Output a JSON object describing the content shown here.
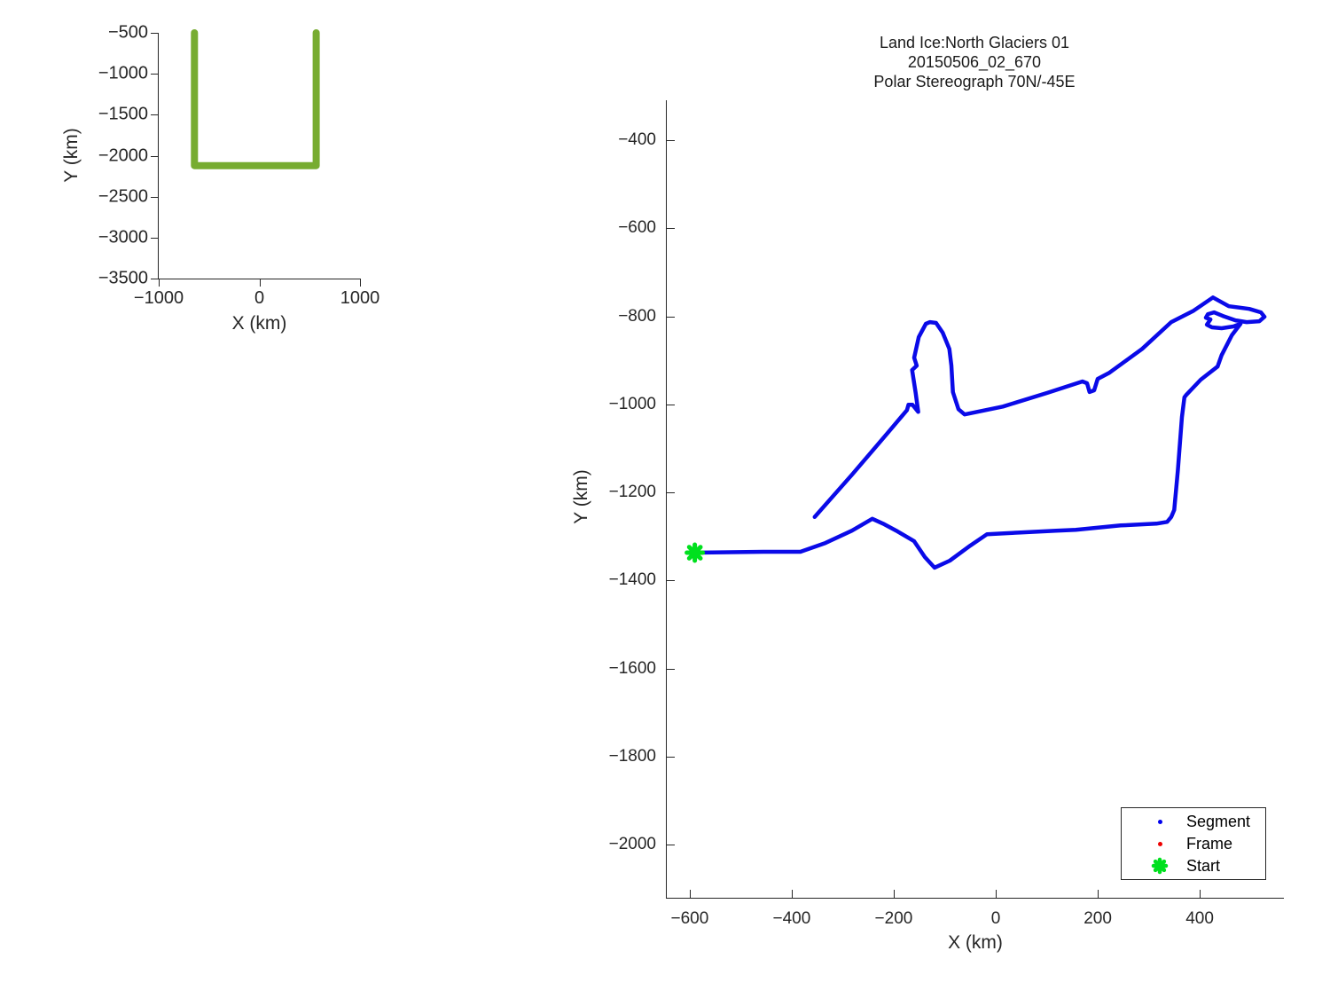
{
  "figure": {
    "background": "#ffffff"
  },
  "chart_data": [
    {
      "type": "line",
      "name": "coverage-overview",
      "title": "",
      "xlabel": "X (km)",
      "ylabel": "Y (km)",
      "xlim": [
        -1000,
        1000
      ],
      "ylim": [
        -3500,
        -500
      ],
      "x_ticks": [
        -1000,
        0,
        1000
      ],
      "y_ticks": [
        -500,
        -1000,
        -1500,
        -2000,
        -2500,
        -3000,
        -3500
      ],
      "grid": false,
      "tick_dir": "out",
      "series": [
        {
          "name": "coverage-extent-box",
          "type": "line",
          "color": "#77AC30",
          "line_width": 8,
          "points": [
            [
              -645,
              -500
            ],
            [
              -645,
              -2121
            ],
            [
              565,
              -2121
            ],
            [
              565,
              -500
            ]
          ]
        }
      ]
    },
    {
      "type": "line",
      "name": "flight-track",
      "title_lines": [
        "Land Ice:North Glaciers 01",
        "20150506_02_670",
        "Polar Stereograph 70N/-45E"
      ],
      "xlabel": "X (km)",
      "ylabel": "Y (km)",
      "xlim": [
        -645,
        565
      ],
      "ylim": [
        -2121,
        -309
      ],
      "x_ticks": [
        -600,
        -400,
        -200,
        0,
        200,
        400
      ],
      "y_ticks": [
        -400,
        -600,
        -800,
        -1000,
        -1200,
        -1400,
        -1600,
        -1800,
        -2000
      ],
      "grid": false,
      "tick_dir": "in",
      "legend_position": "bottom-right",
      "series": [
        {
          "name": "Segment",
          "type": "line",
          "color": "#0A0AE8",
          "line_width": 4.5,
          "points": [
            [
              -590,
              -1337
            ],
            [
              -456,
              -1335
            ],
            [
              -383,
              -1335
            ],
            [
              -334,
              -1315
            ],
            [
              -282,
              -1287
            ],
            [
              -242,
              -1260
            ],
            [
              -221,
              -1271
            ],
            [
              -195,
              -1287
            ],
            [
              -160,
              -1311
            ],
            [
              -139,
              -1347
            ],
            [
              -120,
              -1371
            ],
            [
              -90,
              -1355
            ],
            [
              -50,
              -1321
            ],
            [
              -17,
              -1295
            ],
            [
              49,
              -1291
            ],
            [
              118,
              -1287
            ],
            [
              157,
              -1285
            ],
            [
              245,
              -1275
            ],
            [
              315,
              -1271
            ],
            [
              336,
              -1267
            ],
            [
              344,
              -1256
            ],
            [
              350,
              -1240
            ],
            [
              357,
              -1150
            ],
            [
              365,
              -1029
            ],
            [
              370,
              -984
            ],
            [
              374,
              -978
            ],
            [
              402,
              -944
            ],
            [
              435,
              -914
            ],
            [
              443,
              -888
            ],
            [
              463,
              -843
            ],
            [
              480,
              -817
            ],
            [
              466,
              -823
            ],
            [
              443,
              -827
            ],
            [
              424,
              -825
            ],
            [
              414,
              -819
            ],
            [
              421,
              -807
            ],
            [
              412,
              -803
            ],
            [
              416,
              -795
            ],
            [
              428,
              -791
            ],
            [
              445,
              -799
            ],
            [
              470,
              -809
            ],
            [
              492,
              -813
            ],
            [
              517,
              -811
            ],
            [
              527,
              -801
            ],
            [
              520,
              -791
            ],
            [
              497,
              -783
            ],
            [
              457,
              -777
            ],
            [
              426,
              -757
            ],
            [
              388,
              -787
            ],
            [
              344,
              -813
            ],
            [
              287,
              -874
            ],
            [
              223,
              -928
            ],
            [
              200,
              -942
            ],
            [
              193,
              -968
            ],
            [
              184,
              -972
            ],
            [
              179,
              -952
            ],
            [
              170,
              -948
            ],
            [
              101,
              -974
            ],
            [
              14,
              -1005
            ],
            [
              -61,
              -1023
            ],
            [
              -73,
              -1011
            ],
            [
              -84,
              -972
            ],
            [
              -87,
              -912
            ],
            [
              -91,
              -874
            ],
            [
              -104,
              -837
            ],
            [
              -117,
              -815
            ],
            [
              -129,
              -813
            ],
            [
              -137,
              -817
            ],
            [
              -151,
              -847
            ],
            [
              -160,
              -894
            ],
            [
              -155,
              -912
            ],
            [
              -164,
              -922
            ],
            [
              -157,
              -974
            ],
            [
              -152,
              -1017
            ],
            [
              -163,
              -1001
            ],
            [
              -171,
              -1001
            ],
            [
              -174,
              -1013
            ],
            [
              -212,
              -1065
            ],
            [
              -282,
              -1160
            ],
            [
              -355,
              -1256
            ]
          ]
        },
        {
          "name": "Start",
          "type": "marker",
          "marker": "star",
          "color": "#00E01E",
          "size": 18,
          "points": [
            [
              -590,
              -1337
            ]
          ]
        }
      ],
      "legend": {
        "entries": [
          {
            "label": "Segment",
            "marker": "dot",
            "color": "#0000EE"
          },
          {
            "label": "Frame",
            "marker": "dot",
            "color": "#EE0000"
          },
          {
            "label": "Start",
            "marker": "star",
            "color": "#00E01E"
          }
        ]
      }
    }
  ]
}
